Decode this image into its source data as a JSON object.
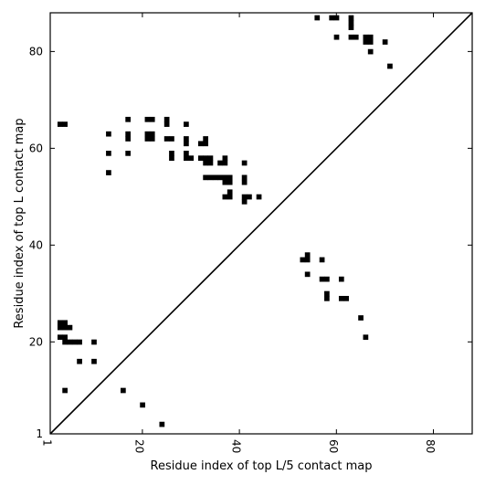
{
  "chart_data": {
    "type": "heatmap",
    "title": "",
    "xlabel": "Residue index of top L/5 contact map",
    "ylabel": "Residue index of top L contact map",
    "xlim": [
      1,
      88
    ],
    "ylim": [
      1,
      88
    ],
    "xticks": [
      1,
      20,
      40,
      60,
      80
    ],
    "yticks": [
      1,
      20,
      40,
      60,
      80
    ],
    "diagonal": true,
    "grid": false,
    "cell_color": "#000000",
    "points_upper_top_L": [
      [
        56,
        87
      ],
      [
        59,
        87
      ],
      [
        60,
        87
      ],
      [
        63,
        87
      ],
      [
        63,
        86
      ],
      [
        63,
        85
      ],
      [
        60,
        83
      ],
      [
        63,
        83
      ],
      [
        64,
        83
      ],
      [
        66,
        83
      ],
      [
        67,
        83
      ],
      [
        66,
        82
      ],
      [
        67,
        82
      ],
      [
        70,
        82
      ],
      [
        67,
        80
      ],
      [
        71,
        77
      ],
      [
        3,
        65
      ],
      [
        4,
        65
      ],
      [
        17,
        66
      ],
      [
        21,
        66
      ],
      [
        22,
        66
      ],
      [
        25,
        66
      ],
      [
        25,
        65
      ],
      [
        29,
        65
      ],
      [
        13,
        63
      ],
      [
        17,
        63
      ],
      [
        17,
        62
      ],
      [
        21,
        63
      ],
      [
        22,
        63
      ],
      [
        21,
        62
      ],
      [
        22,
        62
      ],
      [
        25,
        62
      ],
      [
        26,
        62
      ],
      [
        29,
        62
      ],
      [
        29,
        61
      ],
      [
        32,
        61
      ],
      [
        33,
        61
      ],
      [
        33,
        62
      ],
      [
        13,
        59
      ],
      [
        17,
        59
      ],
      [
        26,
        59
      ],
      [
        26,
        58
      ],
      [
        29,
        59
      ],
      [
        29,
        58
      ],
      [
        30,
        58
      ],
      [
        32,
        58
      ],
      [
        33,
        58
      ],
      [
        34,
        58
      ],
      [
        33,
        57
      ],
      [
        34,
        57
      ],
      [
        36,
        57
      ],
      [
        37,
        57
      ],
      [
        37,
        58
      ],
      [
        41,
        57
      ],
      [
        13,
        55
      ],
      [
        33,
        54
      ],
      [
        34,
        54
      ],
      [
        35,
        54
      ],
      [
        36,
        54
      ],
      [
        37,
        54
      ],
      [
        38,
        54
      ],
      [
        37,
        53
      ],
      [
        38,
        53
      ],
      [
        41,
        54
      ],
      [
        41,
        53
      ],
      [
        38,
        51
      ],
      [
        37,
        50
      ],
      [
        38,
        50
      ],
      [
        41,
        50
      ],
      [
        42,
        50
      ],
      [
        41,
        49
      ],
      [
        44,
        50
      ]
    ],
    "points_lower_top_L5": [
      [
        54,
        38
      ],
      [
        53,
        37
      ],
      [
        54,
        37
      ],
      [
        57,
        37
      ],
      [
        54,
        34
      ],
      [
        57,
        33
      ],
      [
        58,
        33
      ],
      [
        61,
        33
      ],
      [
        58,
        30
      ],
      [
        58,
        29
      ],
      [
        61,
        29
      ],
      [
        62,
        29
      ],
      [
        65,
        25
      ],
      [
        66,
        21
      ],
      [
        3,
        24
      ],
      [
        4,
        24
      ],
      [
        3,
        23
      ],
      [
        4,
        23
      ],
      [
        5,
        23
      ],
      [
        3,
        21
      ],
      [
        4,
        21
      ],
      [
        4,
        20
      ],
      [
        5,
        20
      ],
      [
        6,
        20
      ],
      [
        7,
        20
      ],
      [
        10,
        20
      ],
      [
        7,
        16
      ],
      [
        10,
        16
      ],
      [
        4,
        10
      ],
      [
        16,
        10
      ],
      [
        20,
        7
      ],
      [
        24,
        3
      ]
    ]
  }
}
